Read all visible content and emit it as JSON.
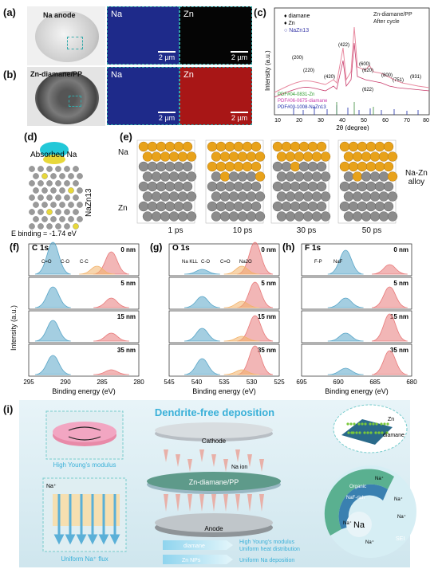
{
  "a": {
    "label": "(a)",
    "photo_label": "Na anode",
    "map1": "Na",
    "map2": "Zn",
    "scale": "2 µm"
  },
  "b": {
    "label": "(b)",
    "photo_label": "Zn-diamane/PP",
    "map1": "Na",
    "map2": "Zn",
    "scale": "2 µm"
  },
  "c": {
    "label": "(c)",
    "legend": [
      "diamane",
      "Zn",
      "NaZn13"
    ],
    "legend_right": [
      "Zn-diamane/PP",
      "After cycle"
    ],
    "peaks": [
      "(200)",
      "(220)",
      "(422)",
      "(420)",
      "(600)",
      "(620)",
      "(622)",
      "(800)",
      "(751)",
      "(931)"
    ],
    "pdf": [
      "PDF#04-0831-Zn",
      "PDF#06-0675-diamane",
      "PDF#03-1008-NaZn13"
    ],
    "ylabel": "Intensity (a.u.)",
    "xlabel": "2θ (degree)",
    "xticks": [
      "10",
      "20",
      "30",
      "40",
      "50",
      "60",
      "70",
      "80"
    ]
  },
  "d": {
    "label": "(d)",
    "absorbed": "Absorbed Na",
    "compound": "NaZn13",
    "energy": "E binding = -1.74 eV"
  },
  "e": {
    "label": "(e)",
    "na": "Na",
    "zn": "Zn",
    "alloy1": "Na-Zn",
    "alloy2": "alloy",
    "times": [
      "1 ps",
      "10 ps",
      "30 ps",
      "50 ps"
    ]
  },
  "xps": [
    {
      "label": "(f)",
      "title": "C 1s",
      "peaks": [
        "C=O",
        "C-O",
        "C-C"
      ],
      "depths": [
        "0 nm",
        "5 nm",
        "15 nm",
        "35 nm"
      ],
      "xticks": [
        "295",
        "290",
        "285",
        "280"
      ],
      "xlabel": "Binding energy (eV)"
    },
    {
      "label": "(g)",
      "title": "O 1s",
      "peaks": [
        "Na KLL",
        "C-O",
        "C=O",
        "Na2O"
      ],
      "depths": [
        "0 nm",
        "5 nm",
        "15 nm",
        "35 nm"
      ],
      "xticks": [
        "545",
        "540",
        "535",
        "530",
        "525"
      ],
      "xlabel": "Binding energy (eV)"
    },
    {
      "label": "(h)",
      "title": "F 1s",
      "peaks": [
        "F-P",
        "NaF"
      ],
      "depths": [
        "0 nm",
        "5 nm",
        "15 nm",
        "35 nm"
      ],
      "xticks": [
        "695",
        "690",
        "685",
        "680"
      ],
      "xlabel": "Binding energy (eV)"
    }
  ],
  "xps_ylabel": "Intensity (a.u.)",
  "i": {
    "label": "(i)",
    "title": "Dendrite-free deposition",
    "young": "High Young's modulus",
    "flux": "Uniform Na⁺ flux",
    "na_plus": "Na⁺",
    "cathode": "Cathode",
    "na_ion": "Na ion",
    "separator": "Zn-diamane/PP",
    "anode": "Anode",
    "zn": "Zn",
    "diamane": "diamane",
    "arrow1": "diamane",
    "arrow1_t1": "High Young's modulus",
    "arrow1_t2": "Uniform heat distribution",
    "arrow2": "Zn NPs",
    "arrow2_t": "Uniform Na deposition",
    "sei_organic": "Organic",
    "sei_naf": "NaF-rich",
    "sei_na": "Na",
    "sei": "SEI"
  },
  "colors": {
    "na_map": "#1e2a8a",
    "zn_map": "#b11818",
    "na_atom": "#e8a21a",
    "zn_atom": "#8c8c8c",
    "blue_peak": "#5aa6c8",
    "red_peak": "#e87a7a",
    "orange_peak": "#f2b26a",
    "banner": "#3ab0d8"
  }
}
